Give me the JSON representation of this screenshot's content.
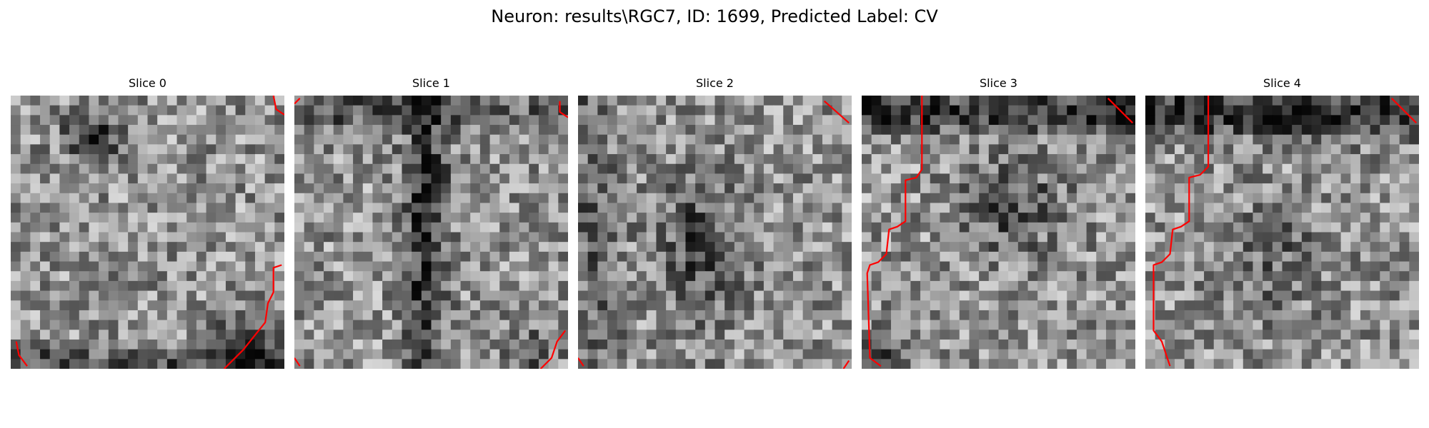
{
  "figure": {
    "title": "Neuron: results\\RGC7, ID: 1699, Predicted Label: CV",
    "grid": {
      "rows": 28,
      "cols": 28
    },
    "contour_color": "#ff0000",
    "colormap": "gray"
  },
  "panels": [
    {
      "title": "Slice 0"
    },
    {
      "title": "Slice 1"
    },
    {
      "title": "Slice 2"
    },
    {
      "title": "Slice 3"
    },
    {
      "title": "Slice 4"
    }
  ]
}
